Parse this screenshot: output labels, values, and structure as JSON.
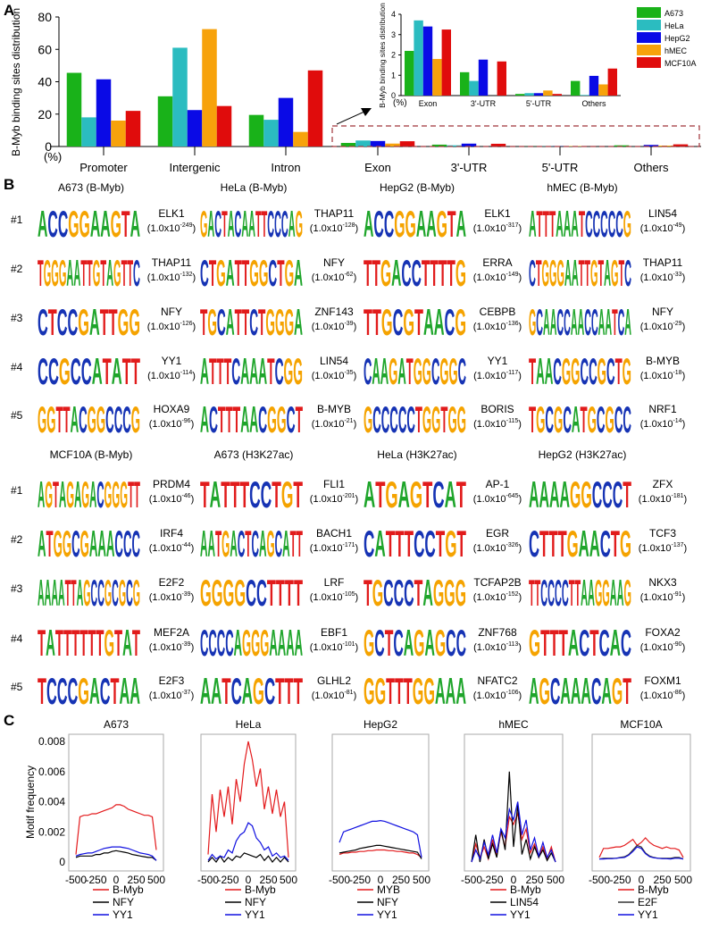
{
  "panel_labels": {
    "a": "A",
    "b": "B",
    "c": "C"
  },
  "colors": {
    "A": "#1fa52b",
    "C": "#1633b4",
    "G": "#f5a300",
    "T": "#e11b1b"
  },
  "chart_data": [
    {
      "type": "bar",
      "id": "main",
      "ylabel": "B-Myb binding sites distribution",
      "unit_label": "(%)",
      "ylim": [
        0,
        80
      ],
      "yticks": [
        "0",
        "20",
        "40",
        "60",
        "80"
      ],
      "categories": [
        "Promoter",
        "Intergenic",
        "Intron",
        "Exon",
        "3'-UTR",
        "5'-UTR",
        "Others"
      ],
      "series": [
        {
          "name": "A673",
          "color": "#19b219",
          "values": [
            45.5,
            31,
            19.5,
            2.2,
            1.15,
            0.08,
            0.72
          ]
        },
        {
          "name": "HeLa",
          "color": "#2bbcc0",
          "values": [
            18,
            61,
            16.5,
            3.7,
            0.72,
            0.12,
            0.03
          ]
        },
        {
          "name": "HepG2",
          "color": "#0a0ae6",
          "values": [
            41.5,
            22.5,
            30,
            3.4,
            1.77,
            0.12,
            0.97
          ]
        },
        {
          "name": "hMEC",
          "color": "#f7a20b",
          "values": [
            16,
            72.5,
            9,
            1.8,
            0,
            0.25,
            0.55
          ]
        },
        {
          "name": "MCF10A",
          "color": "#e00c0c",
          "values": [
            22,
            25,
            47,
            3.25,
            1.68,
            0.08,
            1.33
          ]
        }
      ],
      "legend": "top-right"
    },
    {
      "type": "bar",
      "id": "inset",
      "ylabel": "B-Myb binding sites distribution",
      "unit_label": "(%)",
      "ylim": [
        0,
        4
      ],
      "yticks": [
        "0",
        "1",
        "2",
        "3",
        "4"
      ],
      "categories": [
        "Exon",
        "3'-UTR",
        "5'-UTR",
        "Others"
      ],
      "series_ref": "main (last 4 categories)"
    },
    {
      "type": "line",
      "id": "motif-frequency",
      "ylabel": "Motif frequency",
      "yticks": [
        "0",
        "0.002",
        "0.004",
        "0.006",
        "0.008"
      ],
      "ylim": [
        0,
        0.008
      ],
      "xlim": [
        -500,
        500
      ],
      "xticks": [
        "-500",
        "-250",
        "0",
        "250",
        "500"
      ],
      "x": [
        -500,
        -450,
        -400,
        -350,
        -300,
        -250,
        -200,
        -150,
        -100,
        -50,
        0,
        50,
        100,
        150,
        200,
        250,
        300,
        350,
        400,
        450,
        500
      ],
      "panels": [
        {
          "title": "A673",
          "series": [
            {
              "name": "B-Myb",
              "color": "#e31a1c",
              "values": [
                0.0005,
                0.003,
                0.0031,
                0.0031,
                0.0032,
                0.0032,
                0.0033,
                0.0034,
                0.0035,
                0.0036,
                0.0038,
                0.0038,
                0.0037,
                0.0035,
                0.0034,
                0.0033,
                0.0032,
                0.0031,
                0.0031,
                0.003,
                0.0008
              ]
            },
            {
              "name": "NFY",
              "color": "#000000",
              "values": [
                0.0003,
                0.0004,
                0.0004,
                0.0004,
                0.0004,
                0.0005,
                0.0005,
                0.0006,
                0.0006,
                0.0007,
                0.00075,
                0.0007,
                0.00065,
                0.0006,
                0.0005,
                0.00045,
                0.0004,
                0.00035,
                0.0003,
                0.0003,
                0.0001
              ]
            },
            {
              "name": "YY1",
              "color": "#1010e0",
              "values": [
                0.0004,
                0.0005,
                0.00055,
                0.0006,
                0.0006,
                0.0007,
                0.0008,
                0.0009,
                0.00095,
                0.001,
                0.001,
                0.001,
                0.00095,
                0.0009,
                0.0008,
                0.0007,
                0.0006,
                0.00055,
                0.0005,
                0.0004,
                0.0001
              ]
            }
          ]
        },
        {
          "title": "HeLa",
          "series": [
            {
              "name": "B-Myb",
              "color": "#e31a1c",
              "values": [
                0.0005,
                0.0045,
                0.002,
                0.0048,
                0.003,
                0.005,
                0.0025,
                0.0055,
                0.004,
                0.0065,
                0.008,
                0.0068,
                0.005,
                0.0062,
                0.0035,
                0.005,
                0.0032,
                0.0048,
                0.003,
                0.004,
                0.0003
              ]
            },
            {
              "name": "NFY",
              "color": "#000000",
              "values": [
                0,
                0.0003,
                0,
                0.0004,
                0,
                0.0003,
                0.0001,
                0.0004,
                0.0003,
                0.0006,
                0.0005,
                0.0004,
                0.0003,
                0.0005,
                0.0001,
                0.0004,
                0,
                0.0003,
                0,
                0.0003,
                0
              ]
            },
            {
              "name": "YY1",
              "color": "#1010e0",
              "values": [
                0.0001,
                0.0005,
                0.0002,
                0.0004,
                0.0003,
                0.0008,
                0.0006,
                0.0014,
                0.0018,
                0.002,
                0.0026,
                0.0024,
                0.0016,
                0.0013,
                0.0008,
                0.001,
                0.0004,
                0.0006,
                0.0003,
                0.0004,
                0.0001
              ]
            }
          ]
        },
        {
          "title": "HepG2",
          "series": [
            {
              "name": "MYB",
              "color": "#e31a1c",
              "values": [
                0.0005,
                0.0006,
                0.0006,
                0.00065,
                0.00065,
                0.0007,
                0.0007,
                0.00075,
                0.00075,
                0.0008,
                0.0008,
                0.0008,
                0.00075,
                0.00075,
                0.0007,
                0.0007,
                0.00065,
                0.0006,
                0.0006,
                0.0005,
                0.0003
              ]
            },
            {
              "name": "NFY",
              "color": "#000000",
              "values": [
                0.0006,
                0.00065,
                0.0007,
                0.00075,
                0.0008,
                0.0009,
                0.00095,
                0.001,
                0.00105,
                0.0011,
                0.0011,
                0.00105,
                0.001,
                0.00095,
                0.0009,
                0.00085,
                0.0008,
                0.00075,
                0.0007,
                0.00065,
                0.0002
              ]
            },
            {
              "name": "YY1",
              "color": "#1010e0",
              "values": [
                0.0013,
                0.002,
                0.0021,
                0.0022,
                0.0023,
                0.0024,
                0.0025,
                0.0026,
                0.0027,
                0.0027,
                0.00275,
                0.0027,
                0.0026,
                0.0025,
                0.0024,
                0.0023,
                0.0022,
                0.0021,
                0.002,
                0.0018,
                0.0003
              ]
            }
          ]
        },
        {
          "title": "hMEC",
          "series": [
            {
              "name": "B-Myb",
              "color": "#e31a1c",
              "values": [
                0,
                0.0012,
                0.0003,
                0.001,
                0.0002,
                0.0015,
                0.0004,
                0.002,
                0.001,
                0.003,
                0.0025,
                0.0032,
                0.0015,
                0.0022,
                0.0006,
                0.0012,
                0.0003,
                0.001,
                0.0002,
                0.001,
                0
              ]
            },
            {
              "name": "LIN54",
              "color": "#000000",
              "values": [
                0,
                0.0018,
                0,
                0.0015,
                0.0002,
                0.0012,
                0.0003,
                0.0022,
                0.0008,
                0.006,
                0.001,
                0.0038,
                0.0005,
                0.0015,
                0.0002,
                0.001,
                0.0003,
                0.0008,
                0.0001,
                0.0006,
                0
              ]
            },
            {
              "name": "YY1",
              "color": "#1010e0",
              "values": [
                0,
                0.0008,
                0.0002,
                0.0013,
                0.0005,
                0.0018,
                0.0006,
                0.0022,
                0.0016,
                0.0035,
                0.0028,
                0.004,
                0.0018,
                0.0028,
                0.0008,
                0.0016,
                0.0004,
                0.0013,
                0.0003,
                0.0008,
                0
              ]
            }
          ]
        },
        {
          "title": "MCF10A",
          "series": [
            {
              "name": "B-Myb",
              "color": "#e31a1c",
              "values": [
                0.0003,
                0.0009,
                0.0009,
                0.00095,
                0.001,
                0.001,
                0.0011,
                0.0013,
                0.0015,
                0.0011,
                0.0013,
                0.0016,
                0.0013,
                0.0011,
                0.001,
                0.0009,
                0.001,
                0.0009,
                0.0009,
                0.0008,
                0.0003
              ]
            },
            {
              "name": "E2F",
              "color": "#333333",
              "values": [
                0.0002,
                0.00025,
                0.00025,
                0.00025,
                0.00025,
                0.0003,
                0.00035,
                0.0005,
                0.0008,
                0.0011,
                0.001,
                0.0006,
                0.0004,
                0.0003,
                0.00025,
                0.00025,
                0.00025,
                0.00025,
                0.0003,
                0.0003,
                0.0002
              ]
            },
            {
              "name": "YY1",
              "color": "#1010e0",
              "values": [
                0.0002,
                0.0002,
                0.00022,
                0.00022,
                0.00025,
                0.00028,
                0.0003,
                0.00045,
                0.0007,
                0.001,
                0.0009,
                0.00055,
                0.00035,
                0.00028,
                0.00025,
                0.00022,
                0.00022,
                0.0002,
                0.00025,
                0.00025,
                0.0002
              ]
            }
          ]
        }
      ]
    }
  ],
  "motifs": {
    "row_labels": [
      "#1",
      "#2",
      "#3",
      "#4",
      "#5"
    ],
    "blocks": [
      {
        "headers": [
          "A673 (B-Myb)",
          "HeLa (B-Myb)",
          "HepG2 (B-Myb)",
          "hMEC (B-Myb)"
        ],
        "columns": [
          [
            {
              "seq": "ACCGGAAGTA",
              "tf": "ELK1",
              "mant": "1.0x10",
              "exp": "-249"
            },
            {
              "seq": "TGGGAATTGTAGTTC",
              "tf": "THAP11",
              "mant": "1.0x10",
              "exp": "-132"
            },
            {
              "seq": "CTCCGATTGG",
              "tf": "NFY",
              "mant": "1.0x10",
              "exp": "-126"
            },
            {
              "seq": "CCGCCATATT",
              "tf": "YY1",
              "mant": "1.0x10",
              "exp": "-114"
            },
            {
              "seq": "GGTTACGGCCCG",
              "tf": "HOXA9",
              "mant": "1.0x10",
              "exp": "-96"
            }
          ],
          [
            {
              "seq": "GACTACAATTCCCAG",
              "tf": "THAP11",
              "mant": "1.0x10",
              "exp": "-128"
            },
            {
              "seq": "CTGATTGGCTGA",
              "tf": "NFY",
              "mant": "1.0x10",
              "exp": "-62"
            },
            {
              "seq": "TGCATTCTGGGA",
              "tf": "ZNF143",
              "mant": "1.0x10",
              "exp": "-39"
            },
            {
              "seq": "ATTTCAAATCGG",
              "tf": "LIN54",
              "mant": "1.0x10",
              "exp": "-35"
            },
            {
              "seq": "ACTTTAACGGCT",
              "tf": "B-MYB",
              "mant": "1.0x10",
              "exp": "-21"
            }
          ],
          [
            {
              "seq": "ACCGGAAGTA",
              "tf": "ELK1",
              "mant": "1.0x10",
              "exp": "-317"
            },
            {
              "seq": "TTGACCTTTTG",
              "tf": "ERRA",
              "mant": "1.0x10",
              "exp": "-149"
            },
            {
              "seq": "TTGCGTAACG",
              "tf": "CEBPB",
              "mant": "1.0x10",
              "exp": "-136"
            },
            {
              "seq": "CAAGATGGCGGC",
              "tf": "YY1",
              "mant": "1.0x10",
              "exp": "-117"
            },
            {
              "seq": "GCCCCCTGGTGG",
              "tf": "BORIS",
              "mant": "1.0x10",
              "exp": "-115"
            }
          ],
          [
            {
              "seq": "ATTTAAATCCCCCG",
              "tf": "LIN54",
              "mant": "1.0x10",
              "exp": "-49"
            },
            {
              "seq": "CTGGGAATTGTAGTC",
              "tf": "THAP11",
              "mant": "1.0x10",
              "exp": "-33"
            },
            {
              "seq": "GCAACCAACCAATCA",
              "tf": "NFY",
              "mant": "1.0x10",
              "exp": "-29"
            },
            {
              "seq": "TAACGGCCGCTG",
              "tf": "B-MYB",
              "mant": "1.0x10",
              "exp": "-18"
            },
            {
              "seq": "TGCGCATGCGCC",
              "tf": "NRF1",
              "mant": "1.0x10",
              "exp": "-14"
            }
          ]
        ]
      },
      {
        "headers": [
          "MCF10A (B-Myb)",
          "A673 (H3K27ac)",
          "HeLa (H3K27ac)",
          "HepG2 (H3K27ac)"
        ],
        "columns": [
          [
            {
              "seq": "AGTAGAGACGGGTT",
              "tf": "PRDM4",
              "mant": "1.0x10",
              "exp": "-46"
            },
            {
              "seq": "ATGGCGAAACCC",
              "tf": "IRF4",
              "mant": "1.0x10",
              "exp": "-44"
            },
            {
              "seq": "AAAATTAGCCGCGCG",
              "tf": "E2F2",
              "mant": "1.0x10",
              "exp": "-39"
            },
            {
              "seq": "TATTTTTTGTAT",
              "tf": "MEF2A",
              "mant": "1.0x10",
              "exp": "-39"
            },
            {
              "seq": "TCCCGACTAA",
              "tf": "E2F3",
              "mant": "1.0x10",
              "exp": "-37"
            }
          ],
          [
            {
              "seq": "TATTTCCTGT",
              "tf": "FLI1",
              "mant": "1.0x10",
              "exp": "-201"
            },
            {
              "seq": "AATGACTCAGCATT",
              "tf": "BACH1",
              "mant": "1.0x10",
              "exp": "-171"
            },
            {
              "seq": "GGGGCCTTTT",
              "tf": "LRF",
              "mant": "1.0x10",
              "exp": "-105"
            },
            {
              "seq": "CCCCAGGGAAAA",
              "tf": "EBF1",
              "mant": "1.0x10",
              "exp": "-101"
            },
            {
              "seq": "AATCAGCTTT",
              "tf": "GLHL2",
              "mant": "1.0x10",
              "exp": "-81"
            }
          ],
          [
            {
              "seq": "ATGAGTCAT",
              "tf": "AP-1",
              "mant": "1.0x10",
              "exp": "-645"
            },
            {
              "seq": "CATTTCCTGT",
              "tf": "EGR",
              "mant": "1.0x10",
              "exp": "-326"
            },
            {
              "seq": "TGCCCTAGGG",
              "tf": "TCFAP2B",
              "mant": "1.0x10",
              "exp": "-152"
            },
            {
              "seq": "GCTCAGAGCC",
              "tf": "ZNF768",
              "mant": "1.0x10",
              "exp": "-113"
            },
            {
              "seq": "GGTTTGGAAA",
              "tf": "NFATC2",
              "mant": "1.0x10",
              "exp": "-106"
            }
          ],
          [
            {
              "seq": "AAAAGGCCCT",
              "tf": "ZFX",
              "mant": "1.0x10",
              "exp": "-181"
            },
            {
              "seq": "CTTTGAACTG",
              "tf": "TCF3",
              "mant": "1.0x10",
              "exp": "-137"
            },
            {
              "seq": "TTCCCCTTAAGGAAG",
              "tf": "NKX3",
              "mant": "1.0x10",
              "exp": "-91"
            },
            {
              "seq": "GTTTACTCAC",
              "tf": "FOXA2",
              "mant": "1.0x10",
              "exp": "-90"
            },
            {
              "seq": "AGCAAACAGT",
              "tf": "FOXM1",
              "mant": "1.0x10",
              "exp": "-86"
            }
          ]
        ]
      }
    ]
  }
}
